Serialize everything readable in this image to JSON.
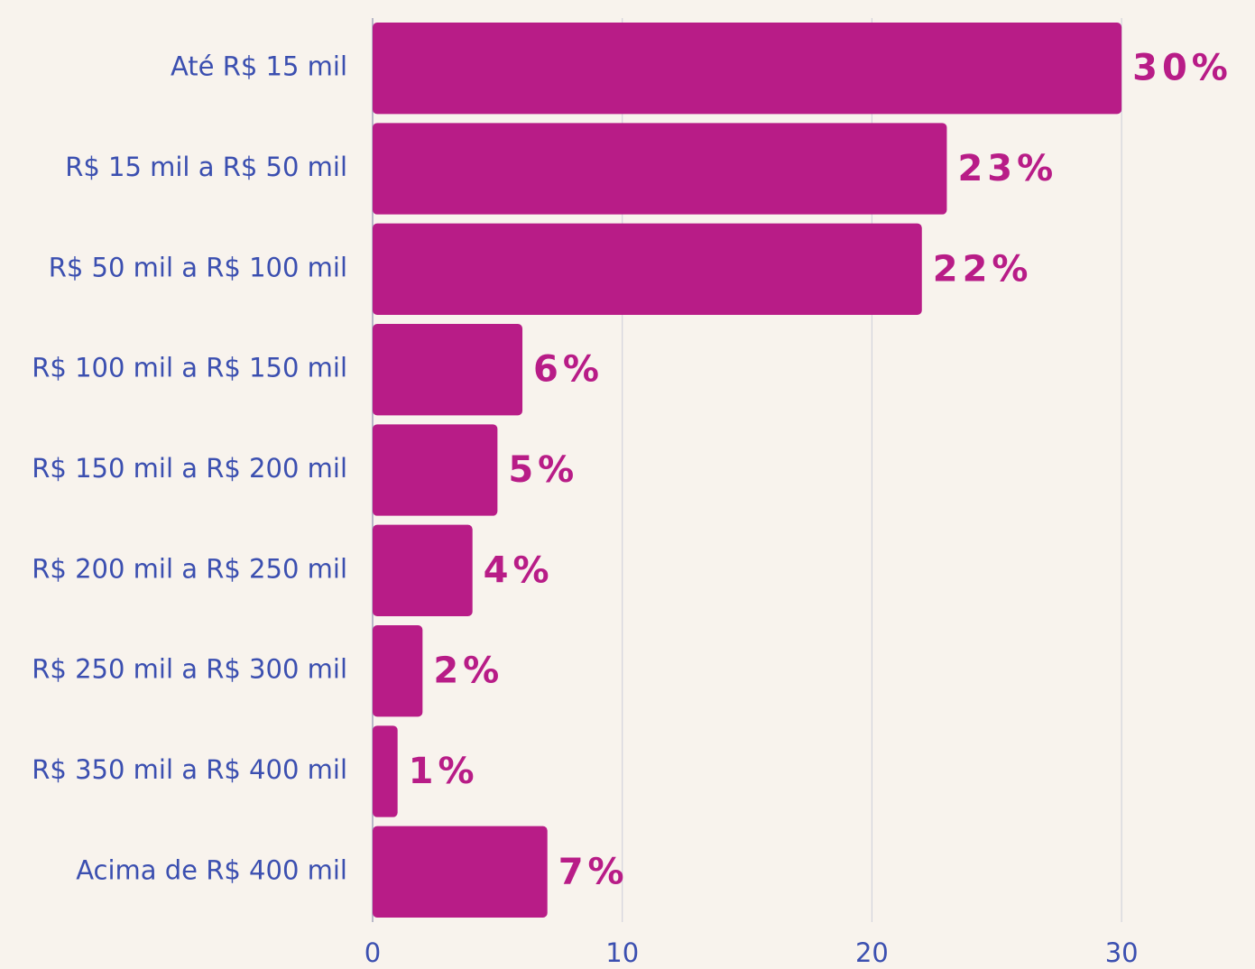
{
  "chart_data": {
    "type": "bar",
    "orientation": "horizontal",
    "categories": [
      "Até R$ 15 mil",
      "R$ 15 mil a R$ 50 mil",
      "R$ 50 mil a R$ 100 mil",
      "R$ 100 mil a R$ 150 mil",
      "R$ 150 mil a R$ 200 mil",
      "R$ 200 mil a R$ 250 mil",
      "R$ 250 mil a R$ 300 mil",
      "R$ 350 mil a R$ 400 mil",
      "Acima de R$ 400 mil"
    ],
    "values": [
      30,
      23,
      22,
      6,
      5,
      4,
      2,
      1,
      7
    ],
    "value_labels": [
      "30%",
      "23%",
      "22%",
      "6%",
      "5%",
      "4%",
      "2%",
      "1%",
      "7%"
    ],
    "color": "#b81c87",
    "xlim": [
      0,
      35
    ],
    "xticks": [
      0,
      10,
      20,
      30
    ],
    "grid": true
  }
}
